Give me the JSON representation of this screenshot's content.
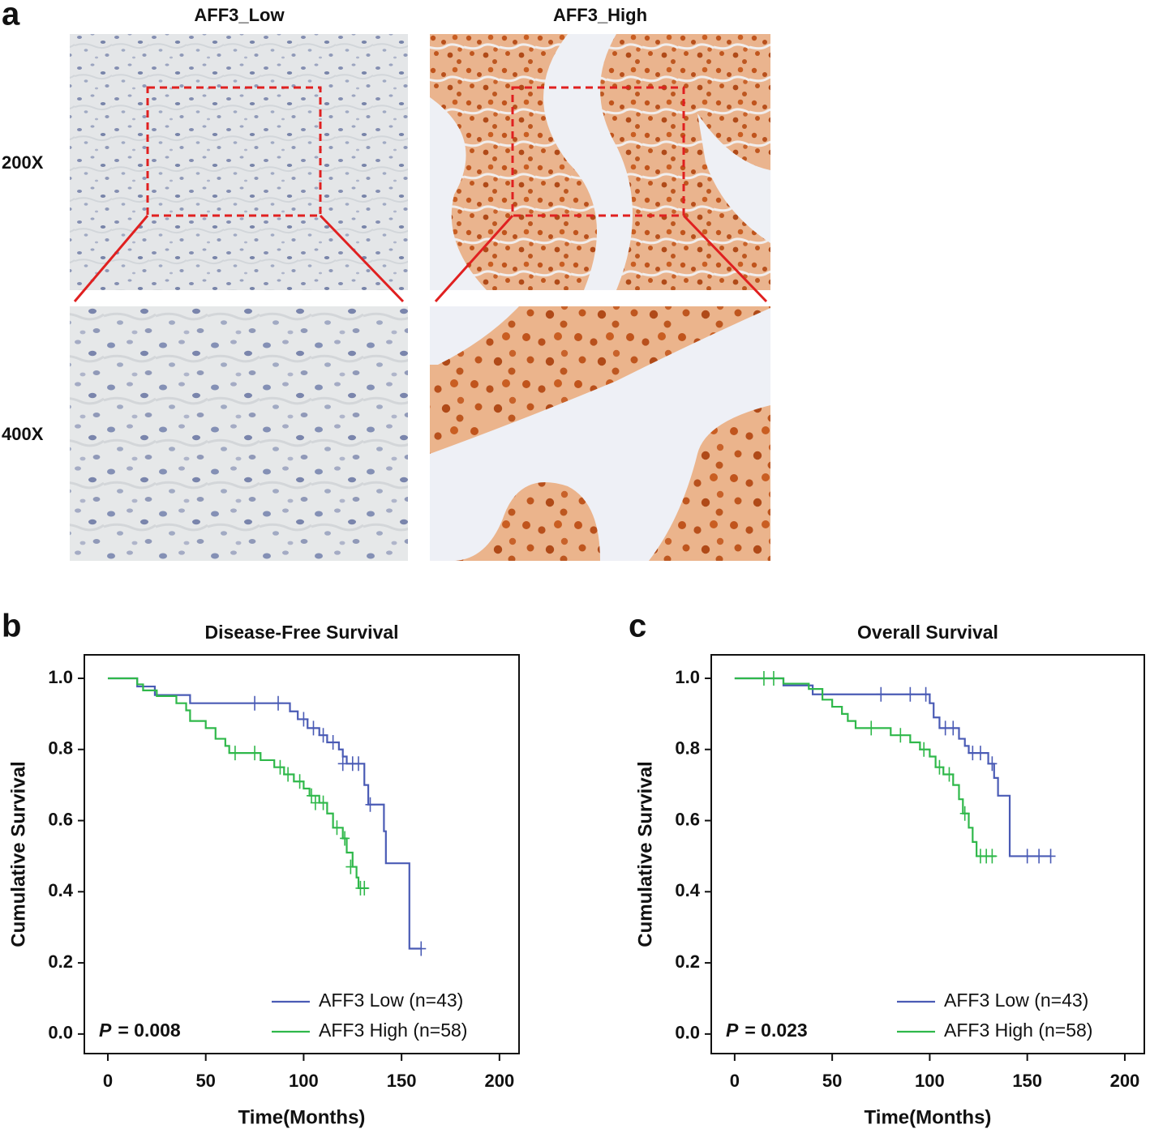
{
  "figure": {
    "panel_label": "a",
    "columns": [
      "AFF3_Low",
      "AFF3_High"
    ],
    "rows": [
      "200X",
      "400X"
    ]
  },
  "chart_data": [
    {
      "type": "line",
      "step": true,
      "panel": "b",
      "title": "Disease-Free Survival",
      "x_label": "Time(Months)",
      "y_label": "Cumulative Survival",
      "annotation": {
        "label": "P",
        "text": "= 0.008"
      },
      "xlim": [
        -12,
        210
      ],
      "ylim": [
        -0.055,
        1.066
      ],
      "xticks": [
        0,
        50,
        100,
        150,
        200
      ],
      "yticks": [
        {
          "value": 0,
          "label": "0.0"
        },
        {
          "value": 0.2,
          "label": "0.2"
        },
        {
          "value": 0.4,
          "label": "0.4"
        },
        {
          "value": 0.6,
          "label": "0.6"
        },
        {
          "value": 0.8,
          "label": "0.8"
        },
        {
          "value": 1,
          "label": "1.0"
        }
      ],
      "legend": "lower right",
      "series": [
        {
          "name": "AFF3 Low (n=43)",
          "color": "#4a5bb5",
          "x": [
            0,
            15,
            24,
            42,
            93,
            97,
            102,
            108,
            112,
            118,
            120,
            122,
            131,
            133,
            141,
            142,
            154,
            160
          ],
          "values": [
            1.0,
            0.977,
            0.953,
            0.93,
            0.907,
            0.885,
            0.86,
            0.84,
            0.82,
            0.8,
            0.78,
            0.76,
            0.7,
            0.645,
            0.57,
            0.48,
            0.24,
            0.24
          ],
          "censored_x": [
            75,
            87,
            100,
            105,
            110,
            115,
            120,
            125,
            128,
            134,
            160
          ],
          "censored_values": [
            0.93,
            0.93,
            0.885,
            0.86,
            0.84,
            0.82,
            0.76,
            0.76,
            0.76,
            0.645,
            0.24
          ]
        },
        {
          "name": "AFF3 High (n=58)",
          "color": "#2fb84a",
          "x": [
            0,
            15,
            18,
            25,
            35,
            40,
            42,
            50,
            55,
            60,
            62,
            78,
            85,
            90,
            95,
            100,
            103,
            108,
            112,
            115,
            120,
            122,
            125,
            127,
            128,
            133
          ],
          "values": [
            1.0,
            0.983,
            0.966,
            0.95,
            0.93,
            0.91,
            0.88,
            0.86,
            0.83,
            0.81,
            0.79,
            0.77,
            0.75,
            0.73,
            0.71,
            0.69,
            0.67,
            0.65,
            0.62,
            0.58,
            0.55,
            0.51,
            0.47,
            0.44,
            0.41,
            0.41
          ],
          "censored_x": [
            65,
            75,
            88,
            92,
            98,
            104,
            106,
            110,
            117,
            121,
            124,
            129,
            131
          ],
          "censored_values": [
            0.79,
            0.79,
            0.75,
            0.73,
            0.71,
            0.67,
            0.65,
            0.65,
            0.58,
            0.55,
            0.47,
            0.41,
            0.41
          ]
        }
      ]
    },
    {
      "type": "line",
      "step": true,
      "panel": "c",
      "title": "Overall Survival",
      "x_label": "Time(Months)",
      "y_label": "Cumulative Survival",
      "annotation": {
        "label": "P",
        "text": "= 0.023"
      },
      "xlim": [
        -12,
        210
      ],
      "ylim": [
        -0.055,
        1.066
      ],
      "xticks": [
        0,
        50,
        100,
        150,
        200
      ],
      "yticks": [
        {
          "value": 0,
          "label": "0.0"
        },
        {
          "value": 0.2,
          "label": "0.2"
        },
        {
          "value": 0.4,
          "label": "0.4"
        },
        {
          "value": 0.6,
          "label": "0.6"
        },
        {
          "value": 0.8,
          "label": "0.8"
        },
        {
          "value": 1,
          "label": "1.0"
        }
      ],
      "legend": "lower right",
      "series": [
        {
          "name": "AFF3 Low (n=43)",
          "color": "#4a5bb5",
          "x": [
            0,
            25,
            40,
            100,
            102,
            105,
            115,
            118,
            120,
            130,
            133,
            135,
            141,
            162
          ],
          "values": [
            1.0,
            0.98,
            0.955,
            0.93,
            0.89,
            0.86,
            0.83,
            0.81,
            0.79,
            0.76,
            0.72,
            0.67,
            0.5,
            0.5
          ],
          "censored_x": [
            75,
            90,
            98,
            108,
            112,
            122,
            126,
            132,
            150,
            156,
            162
          ],
          "censored_values": [
            0.955,
            0.955,
            0.955,
            0.86,
            0.86,
            0.79,
            0.79,
            0.76,
            0.5,
            0.5,
            0.5
          ]
        },
        {
          "name": "AFF3 High (n=58)",
          "color": "#2fb84a",
          "x": [
            0,
            25,
            38,
            45,
            50,
            55,
            58,
            62,
            80,
            90,
            95,
            100,
            103,
            107,
            112,
            115,
            117,
            120,
            122,
            124,
            134
          ],
          "values": [
            1.0,
            0.985,
            0.97,
            0.94,
            0.92,
            0.9,
            0.88,
            0.86,
            0.84,
            0.82,
            0.8,
            0.78,
            0.75,
            0.73,
            0.7,
            0.66,
            0.62,
            0.58,
            0.54,
            0.5,
            0.5
          ],
          "censored_x": [
            15,
            20,
            70,
            85,
            97,
            105,
            110,
            118,
            126,
            129,
            132
          ],
          "censored_values": [
            1.0,
            1.0,
            0.86,
            0.84,
            0.8,
            0.75,
            0.73,
            0.62,
            0.5,
            0.5,
            0.5
          ]
        }
      ]
    }
  ]
}
